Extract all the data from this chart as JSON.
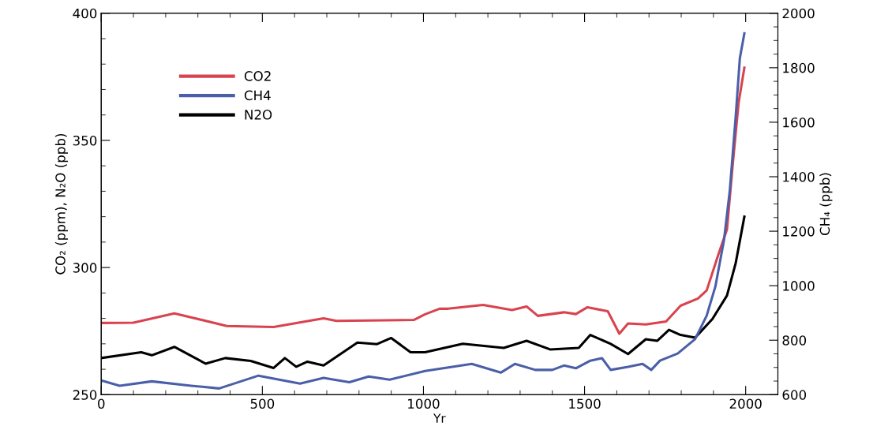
{
  "chart_data": {
    "type": "line",
    "xlabel": "Yr",
    "ylabel": "CO₂ (ppm), N₂O (ppb)",
    "y2label": "CH₄ (ppb)",
    "xlim": [
      0,
      2100
    ],
    "xticks": [
      0,
      500,
      1000,
      1500,
      2000
    ],
    "ylim": [
      250,
      400
    ],
    "yticks": [
      250,
      300,
      350,
      400
    ],
    "y2lim": [
      600,
      2000
    ],
    "y2ticks": [
      600,
      800,
      1000,
      1200,
      1400,
      1600,
      1800,
      2000
    ],
    "legend": "top left",
    "grid": false,
    "series": [
      {
        "name": "CO2",
        "color": "#d9434f",
        "x": [
          0,
          100,
          227,
          390,
          535,
          690,
          730,
          970,
          1005,
          1050,
          1077,
          1185,
          1275,
          1320,
          1355,
          1436,
          1473,
          1509,
          1572,
          1608,
          1635,
          1690,
          1753,
          1798,
          1852,
          1879,
          1915,
          1942,
          1960,
          1978,
          1996
        ],
        "values": [
          278.2,
          278.3,
          282,
          277,
          276.6,
          280,
          279,
          279.4,
          281.6,
          283.8,
          283.8,
          285.3,
          283.3,
          284.7,
          281,
          282.4,
          281.7,
          284.4,
          282.8,
          274,
          278,
          277.6,
          278.8,
          285,
          287.8,
          291,
          305,
          315,
          340.8,
          364.7,
          378.6
        ]
      },
      {
        "name": "CH4",
        "color": "#4a5fa8",
        "axis": "y2",
        "x": [
          0,
          57,
          157,
          279,
          366,
          488,
          617,
          690,
          770,
          830,
          895,
          1005,
          1150,
          1240,
          1284,
          1347,
          1400,
          1436,
          1473,
          1518,
          1554,
          1581,
          1635,
          1680,
          1707,
          1734,
          1789,
          1843,
          1879,
          1906,
          1933,
          1951,
          1969,
          1982,
          1996
        ],
        "values": [
          652,
          633,
          649,
          633,
          623,
          670,
          641,
          662,
          646,
          667,
          655,
          687,
          713,
          681,
          713,
          691,
          691,
          707,
          697,
          725,
          734,
          691,
          702,
          713,
          691,
          725,
          751,
          804,
          890,
          997,
          1169,
          1352,
          1620,
          1835,
          1926
        ]
      },
      {
        "name": "N2O",
        "color": "#000000",
        "x": [
          0,
          124,
          157,
          227,
          324,
          385,
          464,
          535,
          570,
          605,
          640,
          690,
          795,
          856,
          900,
          960,
          1005,
          1122,
          1249,
          1320,
          1393,
          1482,
          1518,
          1581,
          1635,
          1690,
          1726,
          1762,
          1798,
          1843,
          1897,
          1942,
          1969,
          1996
        ],
        "values": [
          264.4,
          266.7,
          265.5,
          268.8,
          262.2,
          264.4,
          263.3,
          260.5,
          264.4,
          261,
          263,
          261.5,
          270.5,
          269.9,
          272.3,
          266.7,
          266.7,
          270,
          268.4,
          271.2,
          267.8,
          268.4,
          273.5,
          270,
          266,
          271.8,
          271.2,
          275.5,
          273.5,
          272.4,
          279.8,
          289,
          301.7,
          320
        ]
      }
    ]
  }
}
